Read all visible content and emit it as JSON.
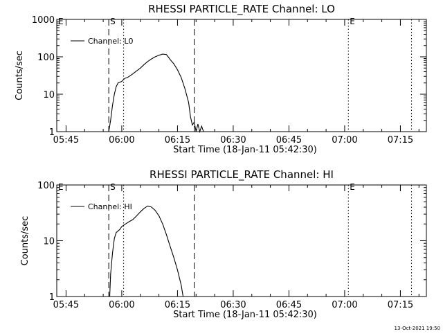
{
  "chart_data": [
    {
      "type": "line",
      "title": "RHESSI PARTICLE_RATE Channel: LO",
      "xlabel": "Start Time (18-Jan-11 05:42:30)",
      "ylabel": "Counts/sec",
      "yscale": "log",
      "ylim": [
        1,
        1000
      ],
      "y_ticks": [
        1,
        10,
        100,
        1000
      ],
      "y_tick_labels": [
        "1",
        "10",
        "100",
        "1000"
      ],
      "x_ticks": [
        "05:45",
        "06:00",
        "06:15",
        "06:30",
        "06:45",
        "07:00",
        "07:15"
      ],
      "legend": {
        "position": "top-left",
        "label": "Channel: L0"
      },
      "markers": [
        {
          "label": "E",
          "time": "05:42:30",
          "style": "none"
        },
        {
          "label": "S",
          "time": "05:56:30",
          "style": "dashed"
        },
        {
          "label": "",
          "time": "06:00:30",
          "style": "dotted"
        },
        {
          "label": "",
          "time": "06:19:30",
          "style": "dashed"
        },
        {
          "label": "E",
          "time": "07:01:00",
          "style": "dotted"
        },
        {
          "label": "",
          "time": "07:18:00",
          "style": "dotted"
        }
      ],
      "series": [
        {
          "name": "Channel: L0",
          "x": [
            "05:56:30",
            "05:57:00",
            "05:57:30",
            "05:58:00",
            "05:58:30",
            "05:59:00",
            "05:59:30",
            "06:00:00",
            "06:00:30",
            "06:01:00",
            "06:01:30",
            "06:02:00",
            "06:03:00",
            "06:04:00",
            "06:05:00",
            "06:06:00",
            "06:07:00",
            "06:08:00",
            "06:09:00",
            "06:10:00",
            "06:11:00",
            "06:12:00",
            "06:12:30",
            "06:13:00",
            "06:14:00",
            "06:15:00",
            "06:16:00",
            "06:17:00",
            "06:18:00",
            "06:18:30",
            "06:19:00",
            "06:19:30",
            "06:20:00",
            "06:20:30",
            "06:21:00",
            "06:21:30",
            "06:22:00"
          ],
          "values": [
            1,
            2,
            5,
            10,
            16,
            20,
            21,
            22,
            25,
            27,
            28,
            30,
            35,
            42,
            50,
            62,
            75,
            88,
            100,
            110,
            118,
            115,
            100,
            85,
            65,
            45,
            28,
            14,
            6,
            2.5,
            1.5,
            1.8,
            1,
            1.6,
            1,
            1.4,
            1
          ]
        }
      ]
    },
    {
      "type": "line",
      "title": "RHESSI PARTICLE_RATE Channel: HI",
      "xlabel": "Start Time (18-Jan-11 05:42:30)",
      "ylabel": "Counts/sec",
      "yscale": "log",
      "ylim": [
        1,
        100
      ],
      "y_ticks": [
        1,
        10,
        100
      ],
      "y_tick_labels": [
        "1",
        "10",
        "100"
      ],
      "x_ticks": [
        "05:45",
        "06:00",
        "06:15",
        "06:30",
        "06:45",
        "07:00",
        "07:15"
      ],
      "legend": {
        "position": "top-left",
        "label": "Channel: HI"
      },
      "markers": [
        {
          "label": "E",
          "time": "05:42:30",
          "style": "none"
        },
        {
          "label": "S",
          "time": "05:56:30",
          "style": "dashed"
        },
        {
          "label": "",
          "time": "06:00:30",
          "style": "dotted"
        },
        {
          "label": "",
          "time": "06:19:30",
          "style": "dashed"
        },
        {
          "label": "E",
          "time": "07:01:00",
          "style": "dotted"
        },
        {
          "label": "",
          "time": "07:18:00",
          "style": "dotted"
        }
      ],
      "series": [
        {
          "name": "Channel: HI",
          "x": [
            "05:56:45",
            "05:57:00",
            "05:57:30",
            "05:58:00",
            "05:58:30",
            "05:59:00",
            "05:59:30",
            "06:00:00",
            "06:01:00",
            "06:02:00",
            "06:03:00",
            "06:04:00",
            "06:05:00",
            "06:06:00",
            "06:07:00",
            "06:08:00",
            "06:09:00",
            "06:10:00",
            "06:11:00",
            "06:12:00",
            "06:13:00",
            "06:14:00",
            "06:15:00",
            "06:16:00",
            "06:16:30"
          ],
          "values": [
            1,
            2.5,
            6,
            11,
            14,
            15,
            16,
            18,
            20,
            22,
            24,
            28,
            33,
            38,
            42,
            40,
            35,
            28,
            20,
            13,
            8,
            5,
            3,
            1.6,
            1
          ]
        }
      ]
    }
  ],
  "footer": {
    "timestamp": "13-Oct-2021 19:50"
  }
}
